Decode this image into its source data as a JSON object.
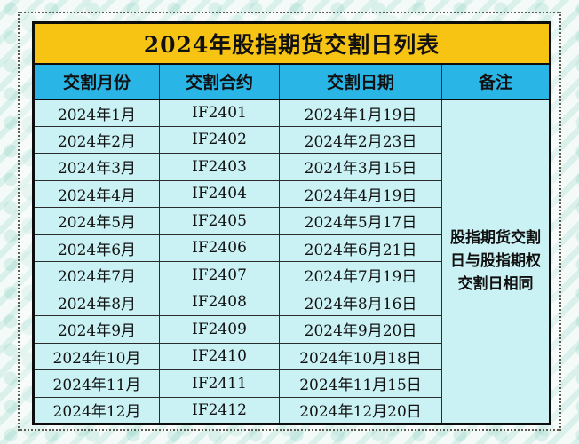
{
  "title": "2024年股指期货交割日列表",
  "colors": {
    "title_bg": "#F8C413",
    "header_bg": "#29B5E6",
    "row_bg": "#CAF1F3",
    "table_border": "#0d0d0d",
    "background_pattern": "#80CEBE"
  },
  "table": {
    "headers": [
      "交割月份",
      "交割合约",
      "交割日期",
      "备注"
    ],
    "remark": "股指期货交割日与股指期权交割日相同",
    "rows": [
      {
        "month": "2024年1月",
        "contract": "IF2401",
        "date": "2024年1月19日"
      },
      {
        "month": "2024年2月",
        "contract": "IF2402",
        "date": "2024年2月23日"
      },
      {
        "month": "2024年3月",
        "contract": "IF2403",
        "date": "2024年3月15日"
      },
      {
        "month": "2024年4月",
        "contract": "IF2404",
        "date": "2024年4月19日"
      },
      {
        "month": "2024年5月",
        "contract": "IF2405",
        "date": "2024年5月17日"
      },
      {
        "month": "2024年6月",
        "contract": "IF2406",
        "date": "2024年6月21日"
      },
      {
        "month": "2024年7月",
        "contract": "IF2407",
        "date": "2024年7月19日"
      },
      {
        "month": "2024年8月",
        "contract": "IF2408",
        "date": "2024年8月16日"
      },
      {
        "month": "2024年9月",
        "contract": "IF2409",
        "date": "2024年9月20日"
      },
      {
        "month": "2024年10月",
        "contract": "IF2410",
        "date": "2024年10月18日"
      },
      {
        "month": "2024年11月",
        "contract": "IF2411",
        "date": "2024年11月15日"
      },
      {
        "month": "2024年12月",
        "contract": "IF2412",
        "date": "2024年12月20日"
      }
    ]
  }
}
